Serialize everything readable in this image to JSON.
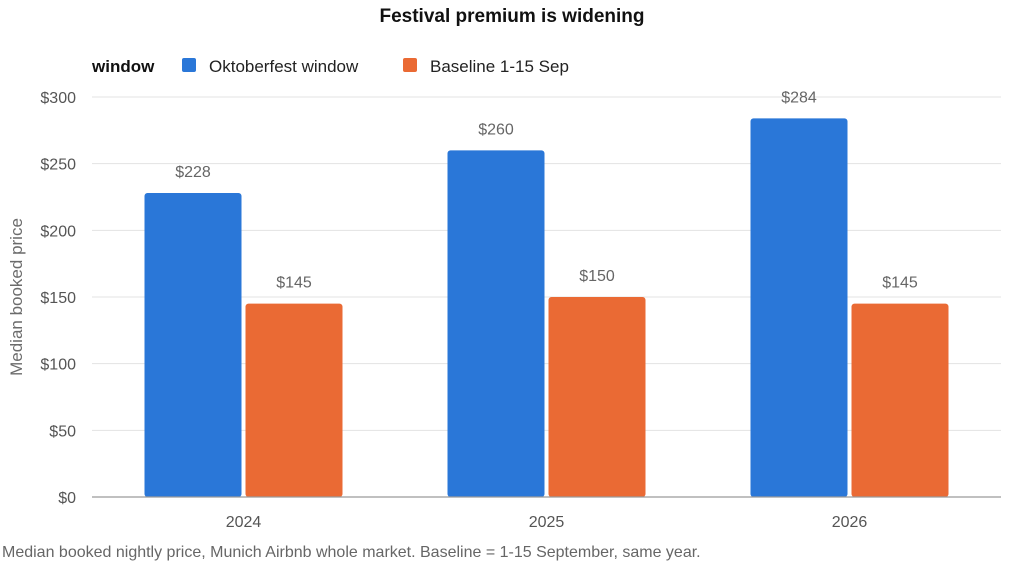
{
  "chart_data": {
    "type": "bar",
    "title": "Festival premium is widening",
    "legend_title": "window",
    "legend_position": "top-left",
    "ylabel": "Median booked price",
    "xlabel": "",
    "categories": [
      "2024",
      "2025",
      "2026"
    ],
    "ylim": [
      0,
      300
    ],
    "yticks": [
      0,
      50,
      100,
      150,
      200,
      250,
      300
    ],
    "ytick_labels": [
      "$0",
      "$50",
      "$100",
      "$150",
      "$200",
      "$250",
      "$300"
    ],
    "grid": true,
    "series": [
      {
        "name": "Oktoberfest window",
        "color": "#2a77d8",
        "values": [
          228,
          260,
          284
        ],
        "labels": [
          "$228",
          "$260",
          "$284"
        ]
      },
      {
        "name": "Baseline 1-15 Sep",
        "color": "#ea6a34",
        "values": [
          145,
          150,
          145
        ],
        "labels": [
          "$145",
          "$150",
          "$145"
        ]
      }
    ],
    "caption": "Median booked nightly price, Munich Airbnb whole market. Baseline = 1-15 September, same year."
  }
}
